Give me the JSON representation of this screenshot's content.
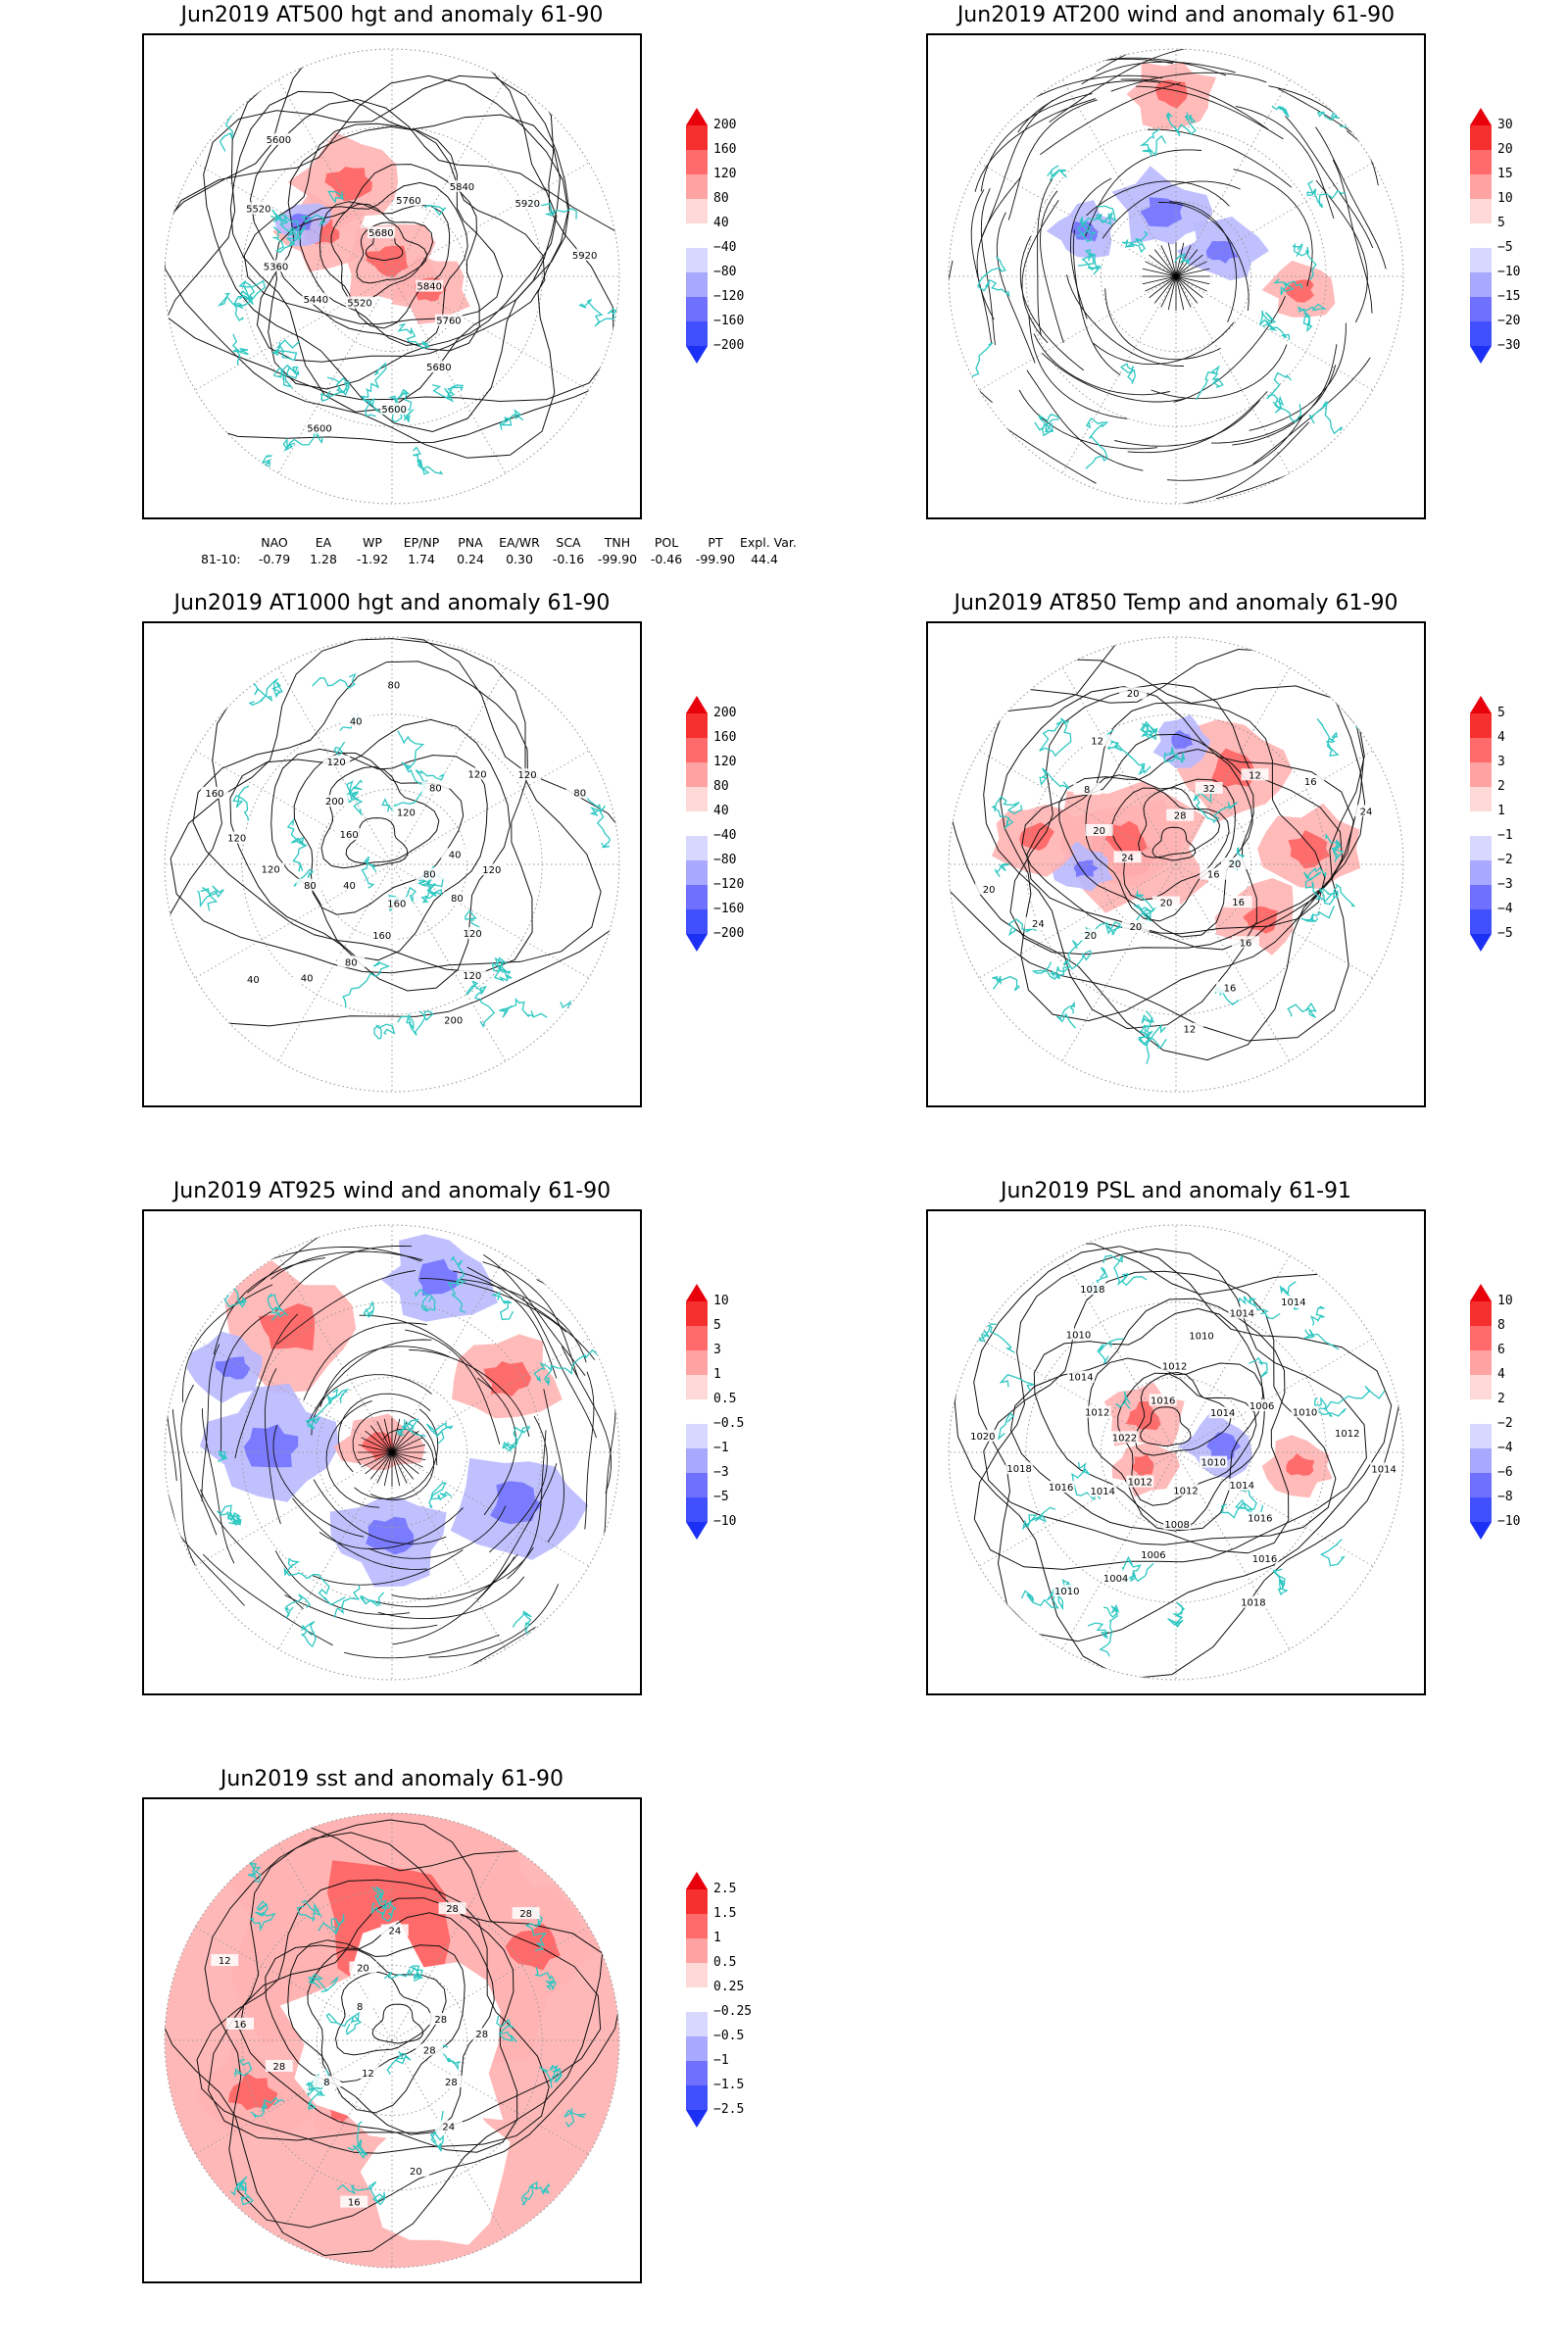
{
  "colors": {
    "coast": "#2ec7c2",
    "contour": "#111111",
    "grid": "#9a9a9a",
    "frame": "#000000",
    "pos_strong": "#e8000b",
    "neg_strong": "#1c30f5"
  },
  "colorbars": {
    "z500": [
      "200",
      "160",
      "120",
      "80",
      "40",
      "−40",
      "−80",
      "−120",
      "−160",
      "−200"
    ],
    "w200": [
      "30",
      "20",
      "15",
      "10",
      "5",
      "−5",
      "−10",
      "−15",
      "−20",
      "−30"
    ],
    "z1000": [
      "200",
      "160",
      "120",
      "80",
      "40",
      "−40",
      "−80",
      "−120",
      "−160",
      "−200"
    ],
    "t850": [
      "5",
      "4",
      "3",
      "2",
      "1",
      "−1",
      "−2",
      "−3",
      "−4",
      "−5"
    ],
    "w925": [
      "10",
      "5",
      "3",
      "1",
      "0.5",
      "−0.5",
      "−1",
      "−3",
      "−5",
      "−10"
    ],
    "psl": [
      "10",
      "8",
      "6",
      "4",
      "2",
      "−2",
      "−4",
      "−6",
      "−8",
      "−10"
    ],
    "sst": [
      "2.5",
      "1.5",
      "1",
      "0.5",
      "0.25",
      "−0.25",
      "−0.5",
      "−1",
      "−1.5",
      "−2.5"
    ]
  },
  "panels": [
    {
      "id": "z500",
      "title": "Jun2019 AT500 hgt and anomaly 61-90",
      "labels": [
        "5840",
        "5760",
        "5680",
        "5600",
        "5600",
        "5520",
        "5440",
        "5360",
        "5520",
        "5600",
        "5680",
        "5760",
        "5840",
        "5920",
        "5920"
      ]
    },
    {
      "id": "w200",
      "title": "Jun2019 AT200 wind and anomaly 61-90",
      "labels": []
    },
    {
      "id": "z1000",
      "title": "Jun2019 AT1000 hgt and anomaly 61-90",
      "labels": [
        "80",
        "80",
        "120",
        "120",
        "200",
        "160",
        "160",
        "80",
        "40",
        "40",
        "40",
        "80",
        "120",
        "120",
        "160",
        "160",
        "200",
        "120",
        "40",
        "80",
        "120",
        "80",
        "120",
        "120",
        "80",
        "40",
        "120"
      ]
    },
    {
      "id": "t850",
      "title": "Jun2019 AT850 Temp and anomaly 61-90",
      "labels": [
        "16",
        "16",
        "16",
        "16",
        "12",
        "20",
        "20",
        "20",
        "24",
        "20",
        "24",
        "20",
        "8",
        "12",
        "20",
        "28",
        "32",
        "12",
        "16",
        "24",
        "20"
      ]
    },
    {
      "id": "w925",
      "title": "Jun2019 AT925 wind and anomaly 61-90",
      "labels": []
    },
    {
      "id": "psl",
      "title": "Jun2019 PSL and anomaly 61-91",
      "labels": [
        "1010",
        "1014",
        "1016",
        "1016",
        "1018",
        "1012",
        "1008",
        "1006",
        "1004",
        "1010",
        "1012",
        "1014",
        "1016",
        "1018",
        "1020",
        "1022",
        "1012",
        "1014",
        "1010",
        "1018",
        "1016",
        "1012",
        "1010",
        "1014",
        "1014",
        "1014",
        "1006",
        "1010",
        "1012",
        "1014"
      ]
    },
    {
      "id": "sst",
      "title": "Jun2019 sst and anomaly 61-90",
      "labels": [
        "28",
        "28",
        "24",
        "20",
        "16",
        "12",
        "8",
        "28",
        "16",
        "12",
        "8",
        "20",
        "24",
        "28",
        "28",
        "28",
        "28"
      ]
    }
  ],
  "indices": {
    "headers": [
      "NAO",
      "EA",
      "WP",
      "EP/NP",
      "PNA",
      "EA/WR",
      "SCA",
      "TNH",
      "POL",
      "PT",
      "Expl. Var."
    ],
    "row_label": "81-10:",
    "values": [
      "-0.79",
      "1.28",
      "-1.92",
      "1.74",
      "0.24",
      "0.30",
      "-0.16",
      "-99.90",
      "-0.46",
      "-99.90",
      "44.4"
    ]
  }
}
